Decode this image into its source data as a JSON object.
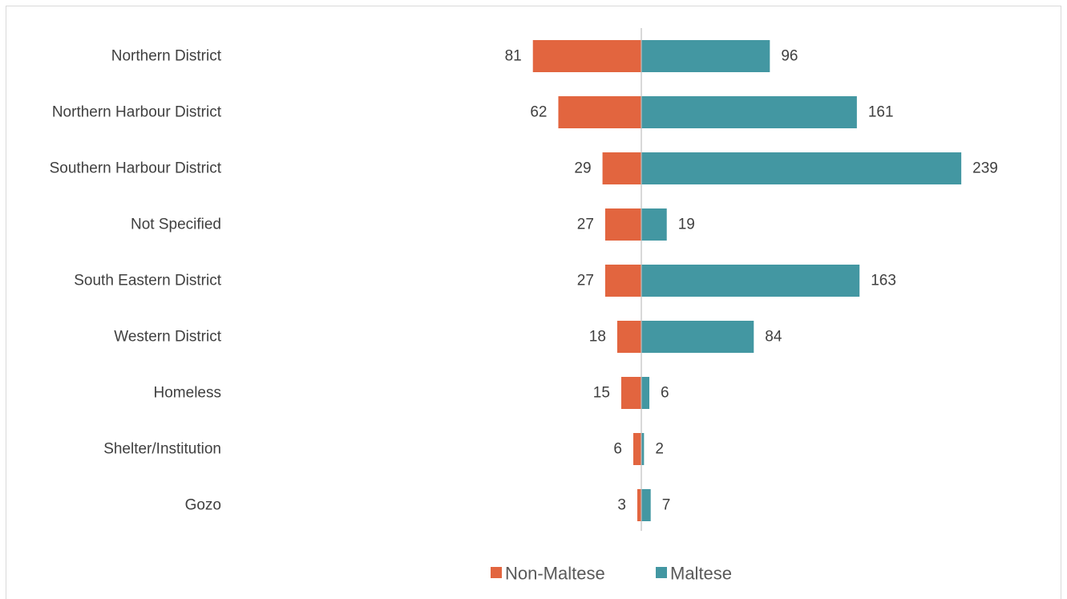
{
  "chart_data": {
    "type": "bar",
    "orientation": "horizontal-diverging",
    "categories": [
      "Northern District",
      "Northern Harbour District",
      "Southern Harbour District",
      "Not Specified",
      "South Eastern District",
      "Western District",
      "Homeless",
      "Shelter/Institution",
      "Gozo"
    ],
    "series": [
      {
        "name": "Non-Maltese",
        "values": [
          81,
          62,
          29,
          27,
          27,
          18,
          15,
          6,
          3
        ],
        "color": "#e2653f",
        "direction": "left"
      },
      {
        "name": "Maltese",
        "values": [
          96,
          161,
          239,
          19,
          163,
          84,
          6,
          2,
          7
        ],
        "color": "#4397a2",
        "direction": "right"
      }
    ],
    "title": "",
    "xlabel": "",
    "ylabel": "",
    "grid": false,
    "legend": "bottom-center",
    "data_labels": true
  },
  "colors": {
    "label_text": "#404040",
    "center_axis": "#bfbfbf",
    "frame": "#d9d9d9"
  }
}
